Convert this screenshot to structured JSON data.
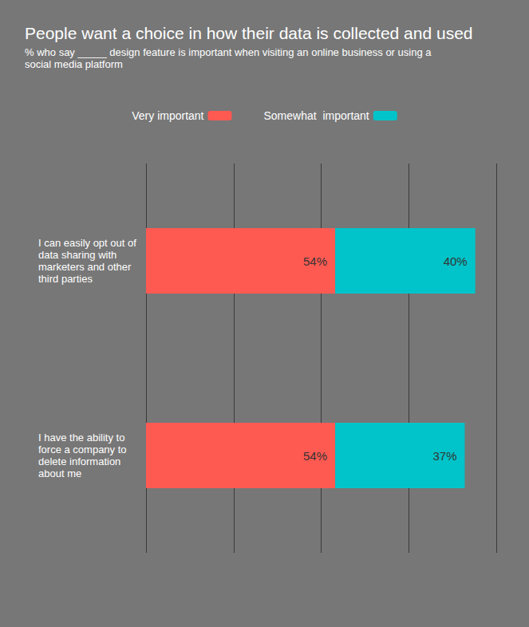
{
  "chart_data": {
    "type": "bar",
    "title": "People want a choice in how their data is collected and used",
    "subtitle": "% who say _____ design feature is important when visiting an online business or using a social media platform",
    "categories": [
      "I can easily opt out of data sharing with marketers and other third parties",
      "I have the ability to force a company to delete information about me"
    ],
    "series": [
      {
        "name": "Very important",
        "color": "#ff5a52",
        "values": [
          54,
          54
        ],
        "value_labels": [
          "54%",
          "54%"
        ]
      },
      {
        "name": "Somewhat  important",
        "color": "#00c4c9",
        "values": [
          40,
          37
        ],
        "value_labels": [
          "40%",
          "37%"
        ]
      }
    ],
    "xlim": [
      0,
      100
    ],
    "xticks": [
      0,
      25,
      50,
      75,
      100
    ],
    "orientation": "horizontal",
    "stacked": true,
    "data_labels": true,
    "grid": true,
    "legend": "top",
    "tick_labels": false
  }
}
